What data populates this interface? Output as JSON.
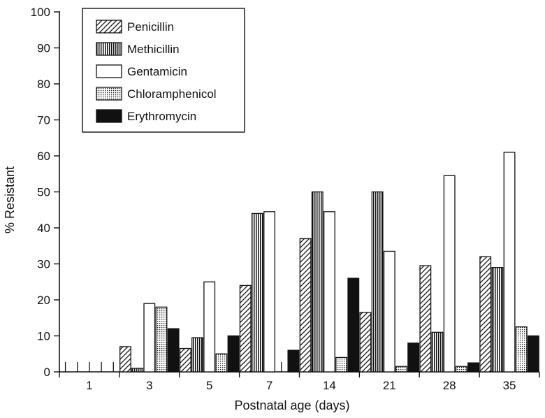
{
  "chart_data": {
    "type": "bar",
    "ylabel": "% Resistant",
    "xlabel": "Postnatal age (days)",
    "categories": [
      "1",
      "3",
      "5",
      "7",
      "14",
      "21",
      "28",
      "35"
    ],
    "ylim": [
      0,
      100
    ],
    "yticks": [
      0,
      10,
      20,
      30,
      40,
      50,
      60,
      70,
      80,
      90,
      100
    ],
    "grid": false,
    "legend_position": "top-left",
    "series": [
      {
        "name": "Penicillin",
        "pattern": "diagonal-hatch",
        "values": [
          0,
          7,
          6.5,
          24,
          37,
          16.5,
          29.5,
          32
        ]
      },
      {
        "name": "Methicillin",
        "pattern": "vertical-stripes",
        "values": [
          0,
          1,
          9.5,
          44,
          50,
          50,
          11,
          29
        ]
      },
      {
        "name": "Gentamicin",
        "pattern": "open",
        "values": [
          0,
          19,
          25,
          44.5,
          44.5,
          33.5,
          54.5,
          61
        ]
      },
      {
        "name": "Chloramphenicol",
        "pattern": "dotted",
        "values": [
          0,
          18,
          5,
          0,
          4,
          1.5,
          1.5,
          12.5
        ]
      },
      {
        "name": "Erythromycin",
        "pattern": "solid-black",
        "values": [
          0,
          12,
          10,
          6,
          26,
          8,
          2.5,
          10
        ]
      }
    ]
  }
}
